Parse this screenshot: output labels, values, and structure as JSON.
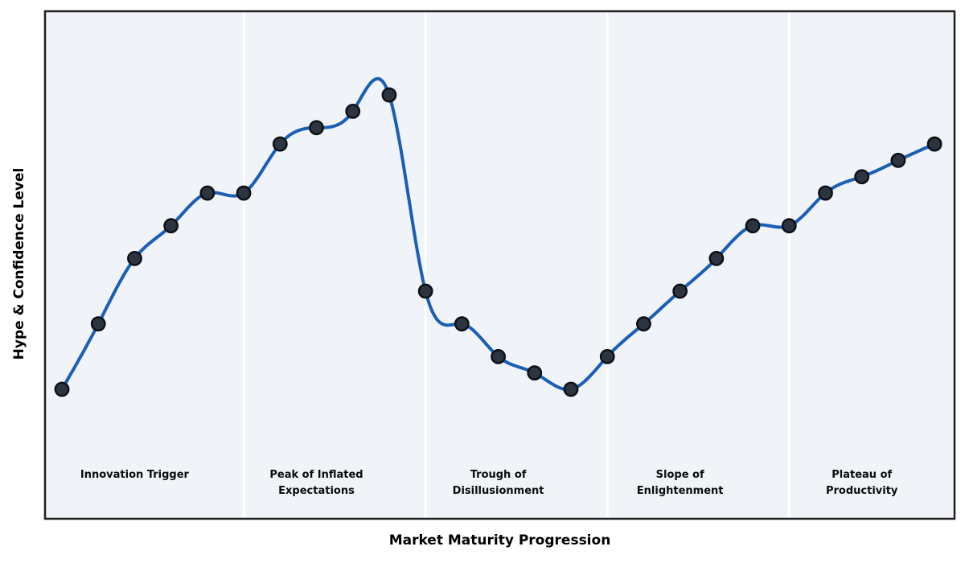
{
  "chart_data": {
    "type": "line",
    "title": "",
    "xlabel": "Market Maturity Progression",
    "ylabel": "Hype & Confidence Level",
    "x": [
      0,
      1,
      2,
      3,
      4,
      5,
      6,
      7,
      8,
      9,
      10,
      11,
      12,
      13,
      14,
      15,
      16,
      17,
      18,
      19,
      20,
      21,
      22,
      23,
      24
    ],
    "values": [
      10,
      30,
      50,
      60,
      70,
      70,
      85,
      90,
      95,
      100,
      40,
      30,
      20,
      15,
      10,
      20,
      30,
      40,
      50,
      60,
      60,
      70,
      75,
      80,
      85
    ],
    "xlim": [
      -0.465,
      24.55
    ],
    "ylim": [
      -29.6,
      125.6
    ],
    "grid": false,
    "legend": "none",
    "smoothing": "cubic-spline",
    "marker": "circle",
    "phases": [
      {
        "label": "Innovation Trigger",
        "center_x": 2
      },
      {
        "label": "Peak of Inflated\nExpectations",
        "center_x": 7
      },
      {
        "label": "Trough of\nDisillusionment",
        "center_x": 12
      },
      {
        "label": "Slope of\nEnlightenment",
        "center_x": 17
      },
      {
        "label": "Plateau of\nProductivity",
        "center_x": 22
      }
    ],
    "dividers_x": [
      5,
      10,
      15,
      20
    ],
    "colors": {
      "line": "#1b5eb5",
      "marker_fill": "#2c3440",
      "marker_edge": "#0b0f16",
      "plot_bg": "#f0f4f8",
      "divider": "#ffffff",
      "spine": "#1f1f1f",
      "text": "#000000"
    }
  }
}
